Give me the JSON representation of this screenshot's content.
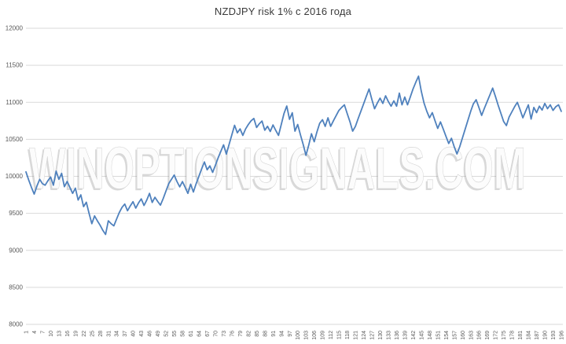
{
  "page": {
    "background": "#ffffff"
  },
  "watermark": {
    "text": "WINOPTIONSIGNALS.COM"
  },
  "colors": {
    "line": "#4f81bd",
    "grid": "#d9d9d9",
    "axis_text": "#595959",
    "title_text": "#3a3a3a",
    "watermark_fill": "#fcfcfc",
    "watermark_edge": "#cfcfcf",
    "watermark_shadow": "rgba(130,130,130,0.30)"
  },
  "chart_data": {
    "type": "line",
    "title": "NZDJPY risk 1% с 2016 года",
    "xlabel": "",
    "ylabel": "",
    "ylim": [
      8000,
      12000
    ],
    "y_step": 500,
    "grid": "horizontal",
    "legend": "none",
    "x_label_rotation": -90,
    "y_tick_labels": [
      "8000",
      "8500",
      "9000",
      "9500",
      "10000",
      "10500",
      "11000",
      "11500",
      "12000"
    ],
    "x_tick_labels": [
      "1",
      "4",
      "7",
      "10",
      "13",
      "16",
      "19",
      "22",
      "25",
      "28",
      "31",
      "34",
      "37",
      "40",
      "43",
      "46",
      "49",
      "52",
      "55",
      "58",
      "61",
      "64",
      "67",
      "70",
      "73",
      "76",
      "79",
      "82",
      "85",
      "88",
      "91",
      "94",
      "97",
      "100",
      "103",
      "106",
      "109",
      "112",
      "115",
      "118",
      "121",
      "124",
      "127",
      "130",
      "133",
      "136",
      "139",
      "142",
      "145",
      "148",
      "151",
      "154",
      "157",
      "160",
      "163",
      "166",
      "169",
      "172",
      "175",
      "178",
      "181",
      "184",
      "187",
      "190",
      "193",
      "196"
    ],
    "x_tick_step": 3,
    "values": [
      10060,
      9950,
      9850,
      9760,
      9870,
      9960,
      9900,
      9880,
      9940,
      9990,
      9880,
      10070,
      9960,
      10040,
      9860,
      9930,
      9850,
      9770,
      9840,
      9680,
      9750,
      9590,
      9650,
      9500,
      9360,
      9465,
      9400,
      9340,
      9270,
      9215,
      9400,
      9360,
      9330,
      9420,
      9510,
      9580,
      9625,
      9535,
      9600,
      9657,
      9570,
      9640,
      9695,
      9606,
      9680,
      9770,
      9647,
      9717,
      9660,
      9611,
      9700,
      9800,
      9900,
      9960,
      10017,
      9930,
      9858,
      9929,
      9850,
      9770,
      9894,
      9788,
      9900,
      10000,
      10100,
      10194,
      10088,
      10141,
      10053,
      10150,
      10250,
      10340,
      10425,
      10300,
      10430,
      10560,
      10690,
      10588,
      10641,
      10553,
      10640,
      10700,
      10750,
      10782,
      10660,
      10710,
      10747,
      10623,
      10676,
      10606,
      10694,
      10620,
      10553,
      10700,
      10850,
      10950,
      10770,
      10858,
      10610,
      10700,
      10560,
      10430,
      10283,
      10420,
      10575,
      10467,
      10600,
      10717,
      10765,
      10675,
      10790,
      10675,
      10750,
      10820,
      10890,
      10930,
      10965,
      10850,
      10740,
      10610,
      10675,
      10780,
      10880,
      10980,
      11080,
      11180,
      11040,
      10912,
      10990,
      11056,
      10985,
      11088,
      11010,
      10947,
      11020,
      10947,
      11124,
      10965,
      11071,
      10965,
      11071,
      11180,
      11270,
      11353,
      11150,
      10990,
      10880,
      10790,
      10860,
      10750,
      10647,
      10735,
      10640,
      10540,
      10443,
      10514,
      10400,
      10302,
      10400,
      10520,
      10640,
      10760,
      10880,
      10980,
      11035,
      10930,
      10823,
      10920,
      11010,
      11100,
      11192,
      11080,
      10960,
      10850,
      10740,
      10685,
      10800,
      10870,
      10940,
      11000,
      10900,
      10790,
      10880,
      10965,
      10773,
      10930,
      10860,
      10947,
      10895,
      10985,
      10913,
      10965,
      10890,
      10940,
      10965,
      10877
    ]
  }
}
